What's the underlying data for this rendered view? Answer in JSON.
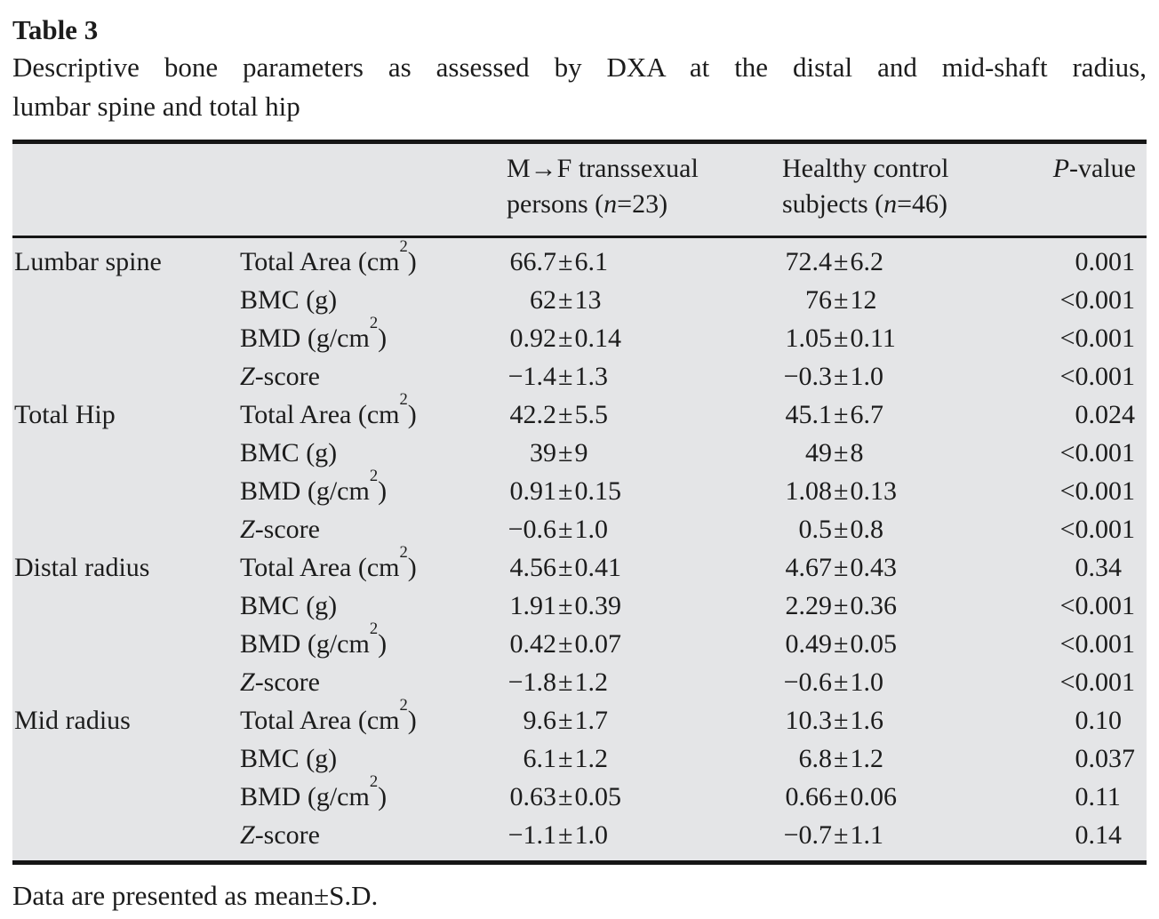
{
  "table": {
    "label": "Table 3",
    "caption_line1": "Descriptive bone parameters as assessed by DXA at the distal and mid-shaft radius,",
    "caption_line2": "lumbar spine and total hip",
    "header": {
      "mf_line1": "M→F transsexual",
      "mf_line2_pre": "persons (",
      "mf_n": "n",
      "mf_line2_post": "=23)",
      "hc_line1": "Healthy control",
      "hc_line2_pre": "subjects (",
      "hc_n": "n",
      "hc_line2_post": "=46)",
      "p_italic": "P",
      "p_rest": "-value"
    },
    "groups": [
      {
        "site": "Lumbar spine",
        "rows": [
          {
            "param": {
              "it": "",
              "pre": "Total Area (cm",
              "sup": "2",
              "post": ")"
            },
            "mf": "66.7±6.1",
            "hc": "72.4±6.2",
            "p": "0.001"
          },
          {
            "param": {
              "it": "",
              "pre": "BMC (g)",
              "sup": "",
              "post": ""
            },
            "mf": "62±13",
            "hc": "76±12",
            "p": "<0.001"
          },
          {
            "param": {
              "it": "",
              "pre": "BMD (g/cm",
              "sup": "2",
              "post": ")"
            },
            "mf": "0.92±0.14",
            "hc": "1.05±0.11",
            "p": "<0.001"
          },
          {
            "param": {
              "it": "Z",
              "pre": "-score",
              "sup": "",
              "post": ""
            },
            "mf": "−1.4±1.3",
            "hc": "−0.3±1.0",
            "p": "<0.001"
          }
        ]
      },
      {
        "site": "Total Hip",
        "rows": [
          {
            "param": {
              "it": "",
              "pre": "Total Area (cm",
              "sup": "2",
              "post": ")"
            },
            "mf": "42.2±5.5",
            "hc": "45.1±6.7",
            "p": "0.024"
          },
          {
            "param": {
              "it": "",
              "pre": "BMC (g)",
              "sup": "",
              "post": ""
            },
            "mf": "39±9",
            "hc": "49±8",
            "p": "<0.001"
          },
          {
            "param": {
              "it": "",
              "pre": "BMD (g/cm",
              "sup": "2",
              "post": ")"
            },
            "mf": "0.91±0.15",
            "hc": "1.08±0.13",
            "p": "<0.001"
          },
          {
            "param": {
              "it": "Z",
              "pre": "-score",
              "sup": "",
              "post": ""
            },
            "mf": "−0.6±1.0",
            "hc": "0.5±0.8",
            "p": "<0.001"
          }
        ]
      },
      {
        "site": "Distal radius",
        "rows": [
          {
            "param": {
              "it": "",
              "pre": "Total Area (cm",
              "sup": "2",
              "post": ")"
            },
            "mf": "4.56±0.41",
            "hc": "4.67±0.43",
            "p": "0.34"
          },
          {
            "param": {
              "it": "",
              "pre": "BMC (g)",
              "sup": "",
              "post": ""
            },
            "mf": "1.91±0.39",
            "hc": "2.29±0.36",
            "p": "<0.001"
          },
          {
            "param": {
              "it": "",
              "pre": "BMD (g/cm",
              "sup": "2",
              "post": ")"
            },
            "mf": "0.42±0.07",
            "hc": "0.49±0.05",
            "p": "<0.001"
          },
          {
            "param": {
              "it": "Z",
              "pre": "-score",
              "sup": "",
              "post": ""
            },
            "mf": "−1.8±1.2",
            "hc": "−0.6±1.0",
            "p": "<0.001"
          }
        ]
      },
      {
        "site": "Mid radius",
        "rows": [
          {
            "param": {
              "it": "",
              "pre": "Total Area (cm",
              "sup": "2",
              "post": ")"
            },
            "mf": "9.6±1.7",
            "hc": "10.3±1.6",
            "p": "0.10"
          },
          {
            "param": {
              "it": "",
              "pre": "BMC (g)",
              "sup": "",
              "post": ""
            },
            "mf": "6.1±1.2",
            "hc": "6.8±1.2",
            "p": "0.037"
          },
          {
            "param": {
              "it": "",
              "pre": "BMD (g/cm",
              "sup": "2",
              "post": ")"
            },
            "mf": "0.63±0.05",
            "hc": "0.66±0.06",
            "p": "0.11"
          },
          {
            "param": {
              "it": "Z",
              "pre": "-score",
              "sup": "",
              "post": ""
            },
            "mf": "−1.1±1.0",
            "hc": "−0.7±1.1",
            "p": "0.14"
          }
        ]
      }
    ],
    "footnote": "Data are presented as mean±S.D.",
    "colors": {
      "table_background": "#e4e5e7",
      "rule_color": "#161616",
      "text_color": "#1c1c1c",
      "page_background": "#ffffff"
    }
  }
}
